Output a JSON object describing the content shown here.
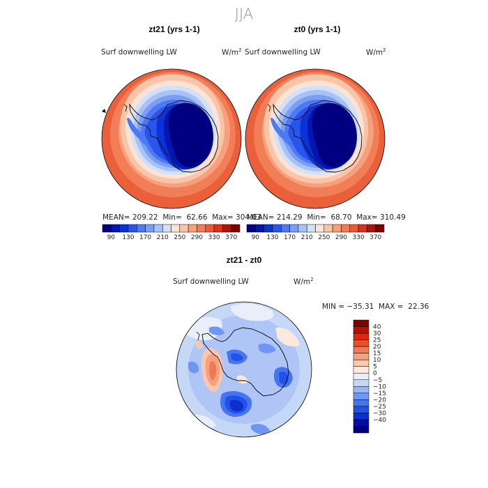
{
  "title": "JJA",
  "colors": {
    "abs_scale": [
      "#000080",
      "#0416b0",
      "#0a32d6",
      "#2a55ec",
      "#4f79f2",
      "#7a9ef5",
      "#a8c1f7",
      "#d3e1f8",
      "#fbe4d6",
      "#f9c3a7",
      "#f7a07d",
      "#f37c57",
      "#ec5a35",
      "#d8331d",
      "#ac1508",
      "#7a0000"
    ],
    "diff_scale": [
      "#000080",
      "#0a0aa6",
      "#0c2fd0",
      "#2352e8",
      "#4675ef",
      "#6f96f2",
      "#9ab7f4",
      "#c6d8f8",
      "#e8effb",
      "#fde9dc",
      "#f8c7ae",
      "#f5a180",
      "#f07a56",
      "#e84f2f",
      "#dc2712",
      "#b31207",
      "#800000"
    ]
  },
  "panels": [
    {
      "title": "zt21 (yrs 1-1)",
      "variable": "Surf downwelling LW",
      "units": "W/m",
      "units_exp": "2",
      "mean_label": "MEAN=",
      "mean": "209.22",
      "min_label": "Min=",
      "min": "62.66",
      "max_label": "Max=",
      "max": "304.03"
    },
    {
      "title": "zt0 (yrs 1-1)",
      "variable": "Surf downwelling LW",
      "units": "W/m",
      "units_exp": "2",
      "mean_label": "MEAN=",
      "mean": "214.29",
      "min_label": "Min=",
      "min": "68.70",
      "max_label": "Max=",
      "max": "310.49"
    }
  ],
  "diff_panel": {
    "title": "zt21 - zt0",
    "variable": "Surf downwelling LW",
    "units": "W/m",
    "units_exp": "2",
    "minmax": "MIN = −35.31  MAX =  22.36"
  },
  "chart_data": [
    {
      "type": "heatmap",
      "projection": "south polar stereographic",
      "title": "zt21 (yrs 1-1)",
      "variable": "Surf downwelling LW",
      "units": "W/m2",
      "mean": 209.22,
      "min": 62.66,
      "max": 304.03,
      "colorbar_levels": [
        90,
        130,
        170,
        210,
        250,
        290,
        330,
        370
      ],
      "colorbar_labels": [
        "90",
        "130",
        "170",
        "210",
        "250",
        "290",
        "330",
        "370"
      ],
      "field_description_values": {
        "continent_interior": 75,
        "coast": 150,
        "sea_ice_ring": 220,
        "midlatitude_ocean": 300
      }
    },
    {
      "type": "heatmap",
      "projection": "south polar stereographic",
      "title": "zt0 (yrs 1-1)",
      "variable": "Surf downwelling LW",
      "units": "W/m2",
      "mean": 214.29,
      "min": 68.7,
      "max": 310.49,
      "colorbar_levels": [
        90,
        130,
        170,
        210,
        250,
        290,
        330,
        370
      ],
      "colorbar_labels": [
        "90",
        "130",
        "170",
        "210",
        "250",
        "290",
        "330",
        "370"
      ],
      "field_description_values": {
        "continent_interior": 80,
        "coast": 155,
        "sea_ice_ring": 225,
        "midlatitude_ocean": 305
      }
    },
    {
      "type": "heatmap",
      "projection": "south polar stereographic",
      "title": "zt21 - zt0",
      "variable": "Surf downwelling LW",
      "units": "W/m2",
      "min": -35.31,
      "max": 22.36,
      "colorbar_levels": [
        -40,
        -30,
        -25,
        -20,
        -15,
        -10,
        -5,
        0,
        5,
        10,
        15,
        20,
        25,
        30,
        40
      ],
      "colorbar_labels": [
        "40",
        "30",
        "25",
        "20",
        "15",
        "10",
        "5",
        "0",
        "−5",
        "−10",
        "−15",
        "−20",
        "−25",
        "−30",
        "−40"
      ]
    }
  ]
}
